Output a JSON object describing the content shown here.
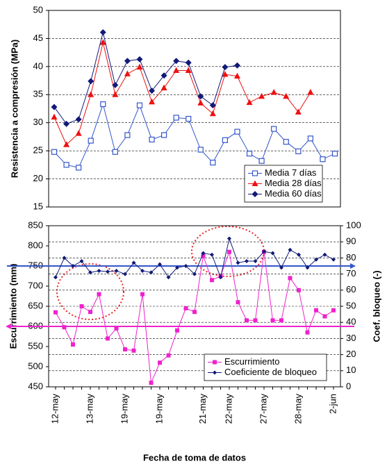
{
  "chart_data": [
    {
      "type": "line",
      "y_label": "Resistencia a compresión (MPa)",
      "ylim": [
        15,
        50
      ],
      "yticks": [
        15,
        20,
        25,
        30,
        35,
        40,
        45,
        50
      ],
      "grid": "y",
      "series": [
        {
          "name": "Media 7 días",
          "color": "#3355cc",
          "marker": "square-open",
          "values": [
            24.8,
            22.5,
            22,
            26.8,
            33.3,
            24.8,
            27.8,
            33.1,
            27,
            27.8,
            30.9,
            30.7,
            25.2,
            22.9,
            26.9,
            28.4,
            24.5,
            23.2,
            28.9,
            26.6,
            24.9,
            27.2,
            23.5,
            24.5
          ]
        },
        {
          "name": "Media 28 días",
          "color": "#ee1111",
          "marker": "triangle",
          "values": [
            31,
            26.1,
            28.1,
            35,
            44.3,
            35,
            38.7,
            39.9,
            33.7,
            36.2,
            39.3,
            39.3,
            33.5,
            31.6,
            38.6,
            38.3,
            33.6,
            34.7,
            35.4,
            34.7,
            31.9,
            35.4,
            null,
            null
          ]
        },
        {
          "name": "Media 60 días",
          "color": "#111a77",
          "marker": "diamond",
          "values": [
            32.8,
            29.8,
            30.6,
            37.4,
            46.1,
            36.7,
            41,
            41.3,
            35.7,
            38.4,
            41,
            40.7,
            34.7,
            33.1,
            39.9,
            40.2,
            null,
            null,
            null,
            null,
            null,
            null,
            null,
            null
          ]
        }
      ]
    },
    {
      "type": "line",
      "y_label": "Escurrimiento (mm)",
      "y2_label": "Coef. bloqueo (-)",
      "x_label": "Fecha de toma de datos",
      "categories": [
        "12-may",
        null,
        null,
        null,
        "13-may",
        null,
        null,
        null,
        "19-may",
        null,
        null,
        null,
        "19-may",
        null,
        null,
        null,
        null,
        "21-may",
        null,
        null,
        "22-may",
        null,
        null,
        null,
        "27-may",
        null,
        null,
        null,
        "28-may",
        null,
        null,
        null,
        "2-jun"
      ],
      "ylim": [
        450,
        850
      ],
      "yticks": [
        450,
        500,
        550,
        600,
        650,
        700,
        750,
        800,
        850
      ],
      "y2lim": [
        0,
        100
      ],
      "y2ticks": [
        0,
        10,
        20,
        30,
        40,
        50,
        60,
        70,
        80,
        90,
        100
      ],
      "grid": "y2",
      "series": [
        {
          "name": "Escurrimiento",
          "color": "#ee22cc",
          "marker": "square",
          "values": [
            635,
            598,
            555,
            650,
            636,
            680,
            570,
            595,
            543,
            540,
            680,
            460,
            510,
            528,
            590,
            645,
            636,
            775,
            715,
            725,
            785,
            660,
            615,
            615,
            785,
            615,
            615,
            720,
            690,
            585,
            640,
            625,
            640
          ]
        },
        {
          "name": "Coeficiente de bloqueo",
          "color": "#111a77",
          "marker": "small-diamond",
          "axis": "y2",
          "values": [
            68,
            80,
            75,
            78,
            71,
            72,
            71.5,
            72,
            70,
            77,
            72,
            71,
            76,
            68,
            74,
            75,
            70,
            83,
            82,
            68,
            92,
            77,
            78,
            78,
            84,
            83,
            74,
            85,
            82,
            74,
            79,
            82,
            79
          ]
        }
      ],
      "hlines": [
        {
          "value": 750,
          "color": "#3355cc",
          "direction": "right"
        },
        {
          "value": 600,
          "color": "#ee22cc",
          "direction": "left"
        }
      ]
    }
  ]
}
